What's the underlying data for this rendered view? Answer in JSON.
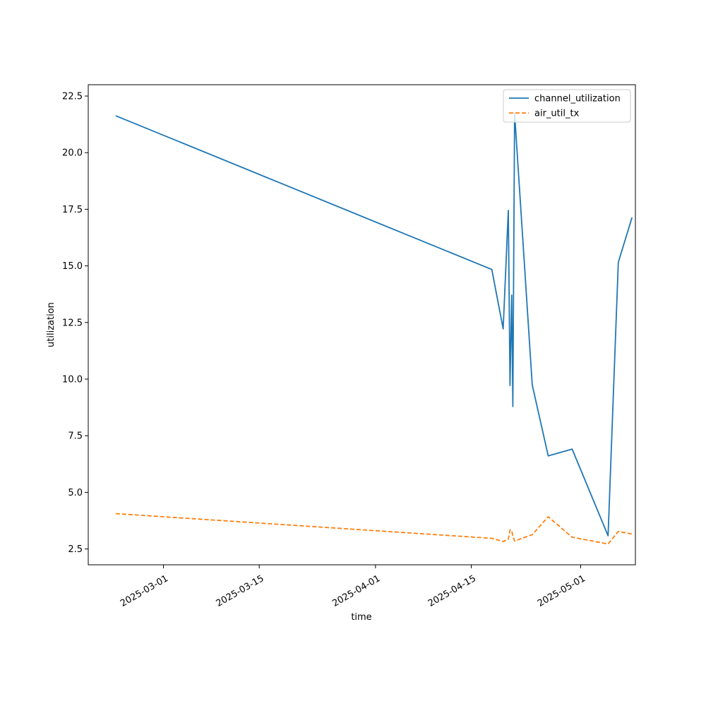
{
  "chart_data": {
    "type": "line",
    "xlabel": "time",
    "ylabel": "utilization",
    "x_range": [
      "2025-02-18",
      "2025-05-09"
    ],
    "ylim": [
      1.8,
      23.0
    ],
    "grid": false,
    "legend_position": "top-right",
    "x_ticks": [
      "2025-03-01",
      "2025-03-15",
      "2025-04-01",
      "2025-04-15",
      "2025-05-01"
    ],
    "y_ticks": [
      "2.5",
      "5.0",
      "7.5",
      "10.0",
      "12.5",
      "15.0",
      "17.5",
      "20.0",
      "22.5"
    ],
    "series": [
      {
        "name": "channel_utilization",
        "color": "#1f77b4",
        "style": "solid",
        "points": [
          [
            "2025-02-22 00:00",
            21.63
          ],
          [
            "2025-04-18 00:00",
            14.84
          ],
          [
            "2025-04-19 16:00",
            12.22
          ],
          [
            "2025-04-20 10:00",
            17.45
          ],
          [
            "2025-04-20 16:00",
            9.72
          ],
          [
            "2025-04-20 22:00",
            13.71
          ],
          [
            "2025-04-21 02:00",
            8.79
          ],
          [
            "2025-04-21 08:00",
            21.74
          ],
          [
            "2025-04-23 22:00",
            9.74
          ],
          [
            "2025-04-26 06:00",
            6.61
          ],
          [
            "2025-04-29 18:00",
            6.91
          ],
          [
            "2025-05-05 00:00",
            3.08
          ],
          [
            "2025-05-06 12:00",
            15.16
          ],
          [
            "2025-05-08 12:00",
            17.14
          ]
        ]
      },
      {
        "name": "air_util_tx",
        "color": "#ff7f0e",
        "style": "dashed",
        "points": [
          [
            "2025-02-22 00:00",
            4.06
          ],
          [
            "2025-04-18 00:00",
            2.97
          ],
          [
            "2025-04-19 16:00",
            2.83
          ],
          [
            "2025-04-20 10:00",
            2.93
          ],
          [
            "2025-04-20 16:00",
            3.34
          ],
          [
            "2025-04-20 22:00",
            3.31
          ],
          [
            "2025-04-21 02:00",
            3.07
          ],
          [
            "2025-04-21 08:00",
            2.85
          ],
          [
            "2025-04-23 22:00",
            3.13
          ],
          [
            "2025-04-26 06:00",
            3.92
          ],
          [
            "2025-04-29 18:00",
            3.02
          ],
          [
            "2025-05-05 00:00",
            2.72
          ],
          [
            "2025-05-06 12:00",
            3.27
          ],
          [
            "2025-05-08 12:00",
            3.16
          ]
        ]
      }
    ]
  }
}
